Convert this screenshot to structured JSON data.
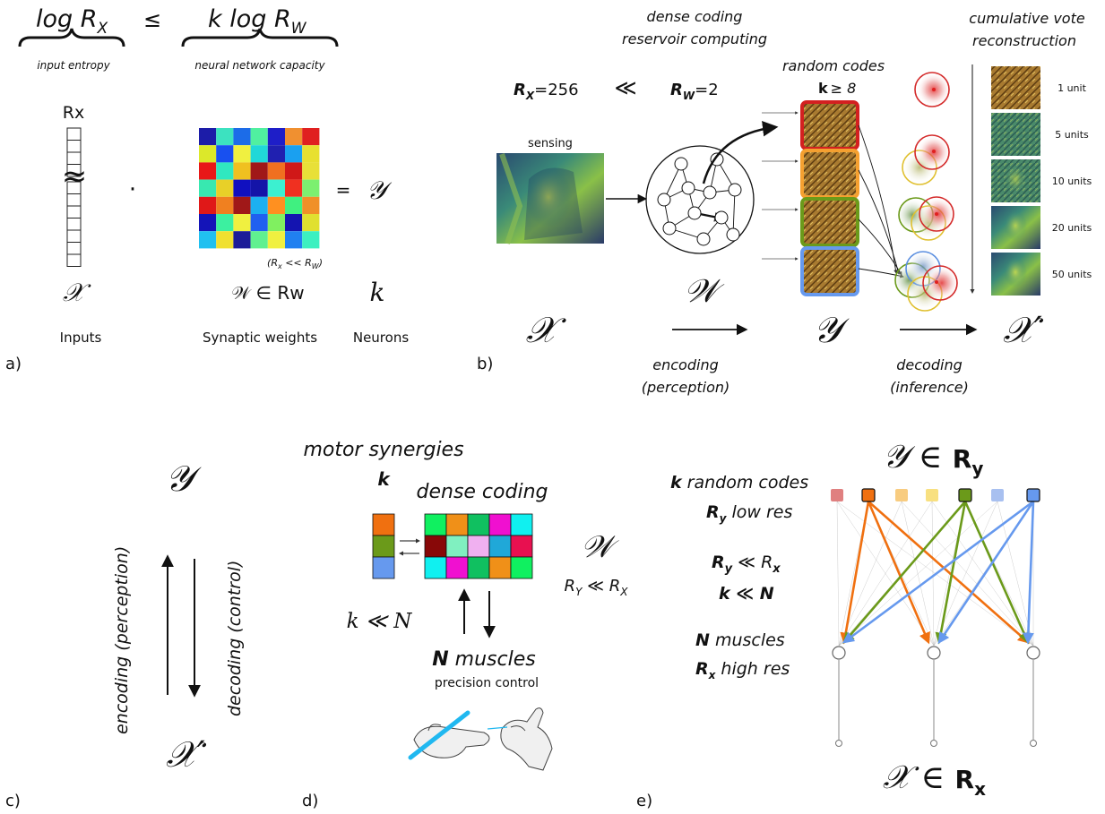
{
  "panel_a": {
    "label": "a)",
    "left_expr": "log R",
    "left_sub": "X",
    "leq": "≤",
    "right_expr": "k log R",
    "right_sub": "W",
    "input_entropy": "input entropy",
    "network_capacity": "neural network capacity",
    "rx": "Rx",
    "approx": "≈",
    "dot": "·",
    "equals": "=",
    "y_symbol": "𝒴",
    "x_symbol": "𝒳",
    "w_in": "𝒲 ∈ Rw",
    "k_symbol": "k",
    "rx_rw_note": "(R",
    "rx_rw_sub1": "x",
    "rx_rw_mid": " << R",
    "rx_rw_sub2": "W",
    "rx_rw_end": ")",
    "inputs": "Inputs",
    "synaptic_weights": "Synaptic weights",
    "neurons": "Neurons",
    "weight_matrix": [
      [
        "#1c1ca8",
        "#3ce2c0",
        "#1c6ce8",
        "#50f0a0",
        "#1e1ec8",
        "#f09030",
        "#e02020"
      ],
      [
        "#dce82a",
        "#1850f0",
        "#f0f040",
        "#20d8d8",
        "#2020b0",
        "#1aa0f0",
        "#e8e030"
      ],
      [
        "#e81818",
        "#30e8c0",
        "#f0c020",
        "#a01818",
        "#f07020",
        "#d01818",
        "#e8e038"
      ],
      [
        "#38e8b0",
        "#e8d028",
        "#1010c0",
        "#1414a8",
        "#3cf0d0",
        "#f03020",
        "#7cf070"
      ],
      [
        "#e01818",
        "#f08020",
        "#a01818",
        "#1cb0f0",
        "#ff9020",
        "#40f080",
        "#f09028"
      ],
      [
        "#1414b8",
        "#3cf0a0",
        "#f0f040",
        "#2060f0",
        "#80f060",
        "#1414b0",
        "#e0e030"
      ],
      [
        "#20c0f0",
        "#f0e030",
        "#1c1c98",
        "#60f090",
        "#f0f040",
        "#2080f0",
        "#3cf0c0"
      ]
    ]
  },
  "panel_b": {
    "label": "b)",
    "dense_coding": "dense coding",
    "reservoir": "reservoir computing",
    "random_codes": "random codes",
    "k_ge": "k",
    "k_ge_rest": "≥ 8",
    "rx_eq": "R",
    "rx_sub": "X",
    "rx_val": "=256",
    "much_less": "≪",
    "rw_eq": "R",
    "rw_sub": "W",
    "rw_val": "=2",
    "sensing": "sensing",
    "cumulative_vote": "cumulative vote",
    "reconstruction": "reconstruction",
    "units": [
      "1 unit",
      "5 units",
      "10 units",
      "20 units",
      "50 units"
    ],
    "w_symbol": "𝒲",
    "x_symbol": "𝒳",
    "y_symbol": "𝒴",
    "x_prime": "𝒳′",
    "encoding": "encoding",
    "perception": "(perception)",
    "decoding": "decoding",
    "inference": "(inference)",
    "code_colors": [
      "#d32020",
      "#f5a030",
      "#6b9a1a",
      "#6699ee"
    ],
    "circle_colors": [
      "#d42a2a",
      "#e0c030",
      "#6b9a1a",
      "#5b8fe0"
    ]
  },
  "panel_c": {
    "label": "c)",
    "y_symbol": "𝒴",
    "x_prime": "𝒳′",
    "encoding_perception": "encoding (perception)",
    "decoding_control": "decoding (control)"
  },
  "panel_d": {
    "label": "d)",
    "motor_synergies": "motor synergies",
    "k": "k",
    "dense_coding": "dense coding",
    "w_symbol": "𝒲",
    "ry_rx": "R",
    "ry_rx_sub1": "Y",
    "ry_rx_mid": " ≪ R",
    "ry_rx_sub2": "X",
    "k_n": "k ≪ N",
    "n_muscles_n": "N",
    "n_muscles_rest": " muscles",
    "precision_control": "precision control",
    "synergy_colors": [
      "#f07010",
      "#6b9a1a",
      "#6699ee"
    ],
    "muscle_grid": [
      [
        "#10f060",
        "#f09018",
        "#10c060",
        "#f010d0",
        "#10f0f0"
      ],
      [
        "#880808",
        "#80f0c0",
        "#f0b0f0",
        "#20a8d8",
        "#e81050"
      ],
      [
        "#10f0f0",
        "#f010d0",
        "#10c060",
        "#f09018",
        "#10f060"
      ]
    ]
  },
  "panel_e": {
    "label": "e)",
    "y_in": "𝒴 ∈ ",
    "ry": "R",
    "ry_sub": "y",
    "x_in": "𝒳 ∈ ",
    "rx": "R",
    "rx_sub": "x",
    "k_random": "k",
    "k_random_rest": " random codes",
    "ry_low": "R",
    "ry_low_sub": "y",
    "ry_low_rest": " low res",
    "ry_ll_rx_a": "R",
    "ry_ll_rx_sub1": "y",
    "ry_ll_rx_mid": " ≪ R",
    "ry_ll_rx_sub2": "x",
    "k_ll_n": "k ≪ N",
    "n_muscles_n": "N",
    "n_muscles_rest": " muscles",
    "rx_high": "R",
    "rx_high_sub": "x",
    "rx_high_rest": " high res",
    "node_colors": [
      "#e08080",
      "#f07010",
      "#f8cc80",
      "#f8e080",
      "#6b9a1a",
      "#a8c0f0",
      "#6699ee"
    ],
    "edge_colors": [
      "#f07010",
      "#6b9a1a",
      "#6699ee"
    ]
  }
}
